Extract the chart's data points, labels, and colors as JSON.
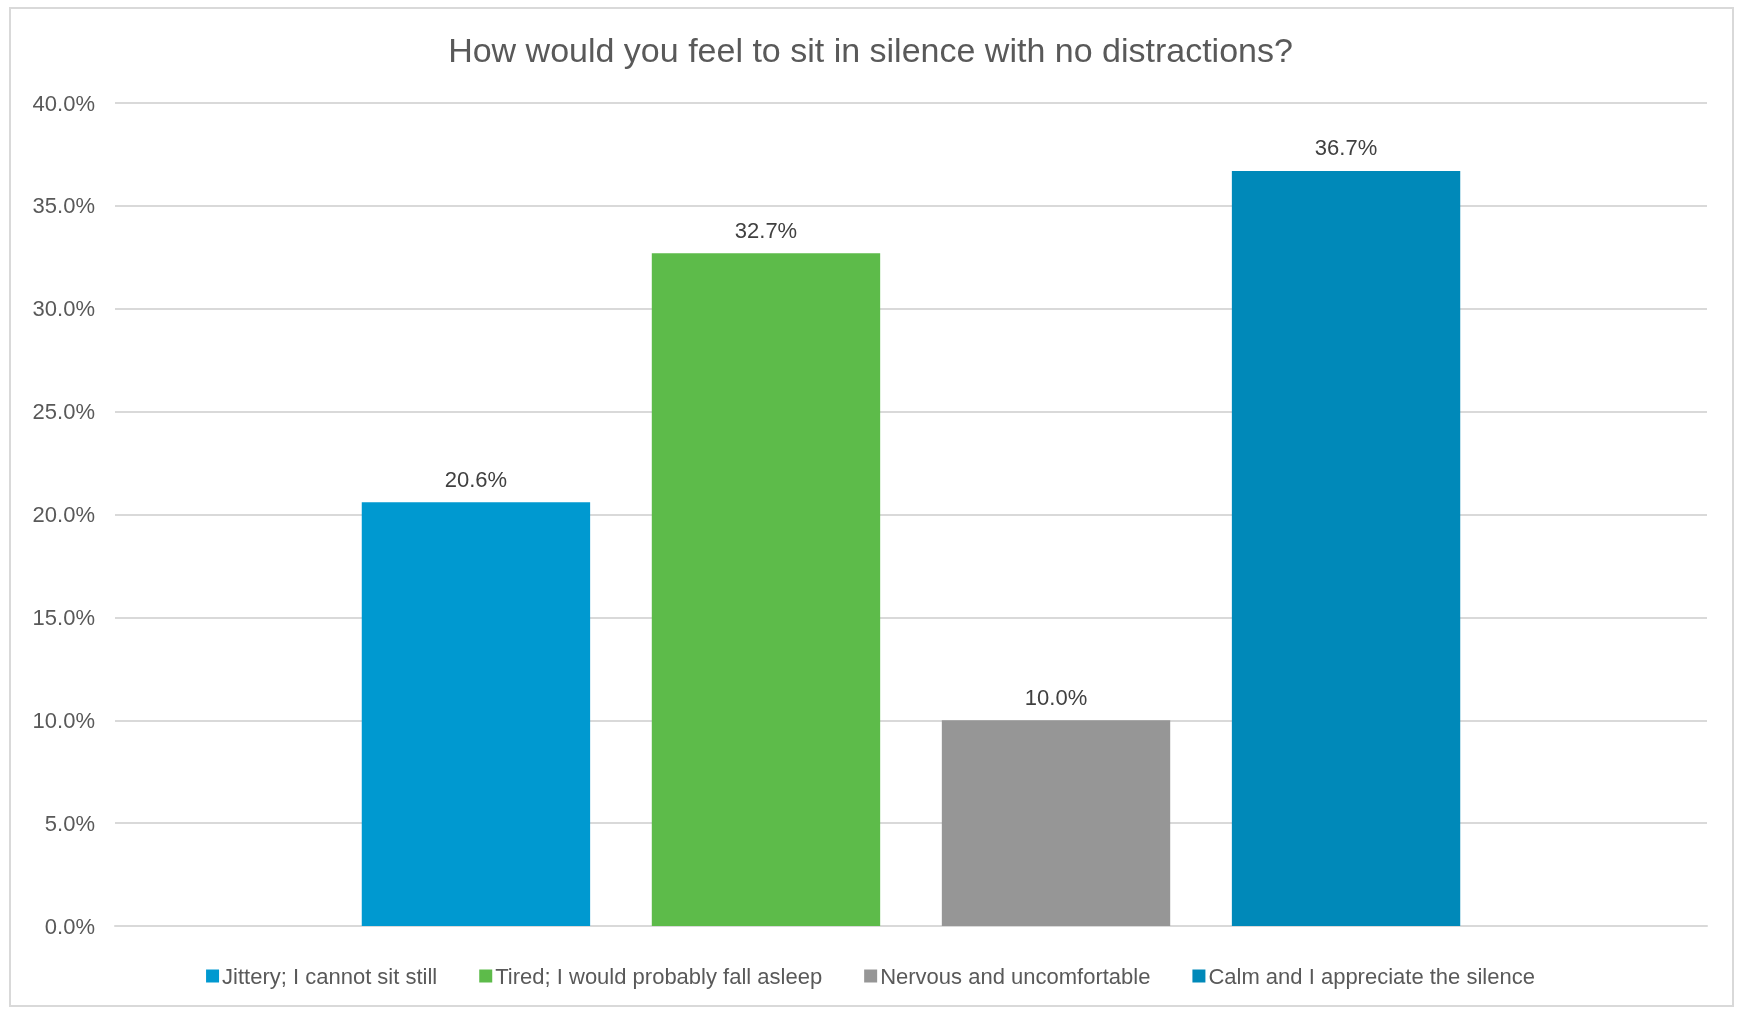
{
  "chart_data": {
    "type": "bar",
    "title": "How would you feel to sit in silence with no distractions?",
    "categories": [
      null
    ],
    "series": [
      {
        "name": "Jittery; I cannot sit still",
        "color": "#0099d0",
        "values": [
          20.6
        ],
        "value_labels": [
          "20.6%"
        ]
      },
      {
        "name": "Tired; I would probably fall asleep",
        "color": "#5dbb4a",
        "values": [
          32.7
        ],
        "value_labels": [
          "32.7%"
        ]
      },
      {
        "name": "Nervous and uncomfortable",
        "color": "#969696",
        "values": [
          10.0
        ],
        "value_labels": [
          "10.0%"
        ]
      },
      {
        "name": "Calm and I appreciate the silence",
        "color": "#0089b9",
        "values": [
          36.7
        ],
        "value_labels": [
          "36.7%"
        ]
      }
    ],
    "ylim": [
      0,
      40
    ],
    "yticks": [
      {
        "value": 0,
        "label": "0.0%"
      },
      {
        "value": 5,
        "label": "5.0%"
      },
      {
        "value": 10,
        "label": "10.0%"
      },
      {
        "value": 15,
        "label": "15.0%"
      },
      {
        "value": 20,
        "label": "20.0%"
      },
      {
        "value": 25,
        "label": "25.0%"
      },
      {
        "value": 30,
        "label": "30.0%"
      },
      {
        "value": 35,
        "label": "35.0%"
      },
      {
        "value": 40,
        "label": "40.0%"
      }
    ],
    "grid": "y",
    "legend": "bottom",
    "tick_labels": "y"
  }
}
